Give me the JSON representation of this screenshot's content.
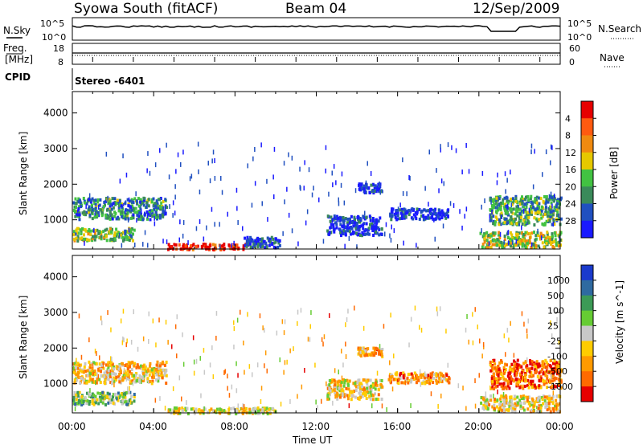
{
  "header": {
    "title": "Syowa South (fitACF)",
    "beam": "Beam 04",
    "date": "12/Sep/2009"
  },
  "status_panels": {
    "nsky_label": "N.Sky",
    "nsky_ticks": [
      "10^5",
      "10^0"
    ],
    "nsearch_label": "N.Search",
    "nsearch_ticks": [
      "10^5",
      "10^0"
    ],
    "freq_label_1": "Freq.",
    "freq_label_2": "[MHz]",
    "freq_ticks": [
      "18",
      "8"
    ],
    "nave_label": "Nave",
    "nave_ticks": [
      "60",
      "0"
    ],
    "cpid_label": "CPID",
    "cpid_value": "Stereo -6401"
  },
  "chart_data": [
    {
      "type": "heatmap",
      "name": "power",
      "ylabel": "Slant Range [km]",
      "yticks": [
        "1000",
        "2000",
        "3000",
        "4000"
      ],
      "ylim": [
        180,
        4600
      ],
      "xlim": [
        0,
        24
      ],
      "colorbar_label": "Power [dB]",
      "colorbar_ticks": [
        "4",
        "8",
        "12",
        "16",
        "20",
        "24",
        "28"
      ],
      "colorbar_colors": [
        "#1a1aff",
        "#2050c0",
        "#3a8a5a",
        "#42c242",
        "#e6c800",
        "#f08a10",
        "#ff5a10",
        "#e60000"
      ],
      "regions": [
        {
          "t0": 0.0,
          "t1": 4.6,
          "r0": 1050,
          "r1": 1650,
          "level": 0.3
        },
        {
          "t0": 0.0,
          "t1": 3.0,
          "r0": 450,
          "r1": 800,
          "level": 0.45
        },
        {
          "t0": 4.6,
          "t1": 8.6,
          "r0": 200,
          "r1": 360,
          "level": 0.95
        },
        {
          "t0": 8.4,
          "t1": 10.2,
          "r0": 250,
          "r1": 550,
          "level": 0.15
        },
        {
          "t0": 12.5,
          "t1": 15.2,
          "r0": 600,
          "r1": 1150,
          "level": 0.1
        },
        {
          "t0": 14.0,
          "t1": 15.2,
          "r0": 1800,
          "r1": 2050,
          "level": 0.1
        },
        {
          "t0": 15.5,
          "t1": 18.5,
          "r0": 1050,
          "r1": 1350,
          "level": 0.1
        },
        {
          "t0": 20.5,
          "t1": 24.0,
          "r0": 900,
          "r1": 1700,
          "level": 0.35
        },
        {
          "t0": 20.0,
          "t1": 24.0,
          "r0": 250,
          "r1": 700,
          "level": 0.5
        }
      ]
    },
    {
      "type": "heatmap",
      "name": "velocity",
      "ylabel": "Slant Range [km]",
      "yticks": [
        "1000",
        "2000",
        "3000",
        "4000"
      ],
      "ylim": [
        180,
        4600
      ],
      "xlim": [
        0,
        24
      ],
      "xlabel": "Time UT",
      "xticks": [
        "00:00",
        "04:00",
        "08:00",
        "12:00",
        "16:00",
        "20:00",
        "00:00"
      ],
      "colorbar_label": "Velocity [m s^-1]",
      "colorbar_ticks": [
        "1000",
        "500",
        "100",
        "25",
        "-25",
        "-100",
        "-500",
        "-1000"
      ],
      "colorbar_colors": [
        "#1a3acc",
        "#2f6aa0",
        "#3c9a56",
        "#66cc33",
        "#c8c8c8",
        "#ffcc00",
        "#ff9a00",
        "#ff6a00",
        "#e60000"
      ],
      "regions": [
        {
          "t0": 0.0,
          "t1": 4.6,
          "r0": 1050,
          "r1": 1650,
          "level": 0.62
        },
        {
          "t0": 0.0,
          "t1": 3.0,
          "r0": 450,
          "r1": 800,
          "level": 0.4
        },
        {
          "t0": 4.6,
          "t1": 10.0,
          "r0": 200,
          "r1": 360,
          "level": 0.55
        },
        {
          "t0": 12.5,
          "t1": 15.2,
          "r0": 600,
          "r1": 1150,
          "level": 0.6
        },
        {
          "t0": 14.0,
          "t1": 15.2,
          "r0": 1800,
          "r1": 2050,
          "level": 0.75
        },
        {
          "t0": 15.5,
          "t1": 18.5,
          "r0": 1050,
          "r1": 1350,
          "level": 0.7
        },
        {
          "t0": 20.5,
          "t1": 24.0,
          "r0": 900,
          "r1": 1700,
          "level": 0.82
        },
        {
          "t0": 20.0,
          "t1": 24.0,
          "r0": 250,
          "r1": 700,
          "level": 0.6
        }
      ]
    }
  ]
}
